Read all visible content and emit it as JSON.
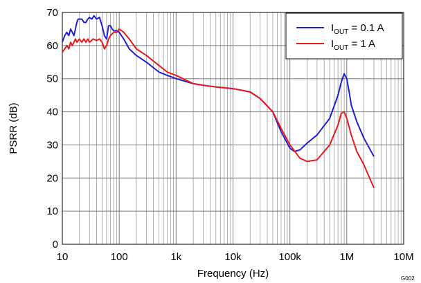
{
  "chart_data": {
    "type": "line",
    "xlabel": "Frequency (Hz)",
    "ylabel": "PSRR (dB)",
    "x_scale": "log",
    "xlim": [
      10,
      10000000
    ],
    "ylim": [
      0,
      70
    ],
    "x_ticks": [
      10,
      100,
      1000,
      10000,
      100000,
      1000000,
      10000000
    ],
    "x_tick_labels": [
      "10",
      "100",
      "1k",
      "10k",
      "100k",
      "1M",
      "10M"
    ],
    "y_ticks": [
      0,
      10,
      20,
      30,
      40,
      50,
      60,
      70
    ],
    "y_tick_labels": [
      "0",
      "10",
      "20",
      "30",
      "40",
      "50",
      "60",
      "70"
    ],
    "grid": true,
    "legend_position": "top-right",
    "figure_code": "G002",
    "series": [
      {
        "name": "IOUT = 0.1 A",
        "legend": {
          "main": "I",
          "sub": "OUT",
          "rest": " = 0.1 A"
        },
        "color": "#1f1fd6",
        "points": [
          [
            10,
            61
          ],
          [
            11,
            63
          ],
          [
            12,
            64
          ],
          [
            13,
            63
          ],
          [
            14,
            65
          ],
          [
            15,
            64
          ],
          [
            16,
            63
          ],
          [
            17,
            65
          ],
          [
            18,
            67
          ],
          [
            19,
            68
          ],
          [
            20,
            68
          ],
          [
            22,
            68
          ],
          [
            24,
            67
          ],
          [
            26,
            67
          ],
          [
            28,
            68
          ],
          [
            30,
            68.5
          ],
          [
            33,
            68
          ],
          [
            36,
            69
          ],
          [
            40,
            68
          ],
          [
            45,
            68.5
          ],
          [
            50,
            66
          ],
          [
            55,
            63
          ],
          [
            60,
            62
          ],
          [
            65,
            66
          ],
          [
            70,
            66
          ],
          [
            75,
            65
          ],
          [
            80,
            64.5
          ],
          [
            90,
            64.5
          ],
          [
            100,
            64
          ],
          [
            120,
            62
          ],
          [
            150,
            59
          ],
          [
            200,
            57
          ],
          [
            300,
            55
          ],
          [
            500,
            52
          ],
          [
            700,
            51
          ],
          [
            1000,
            50
          ],
          [
            2000,
            48.5
          ],
          [
            3000,
            48
          ],
          [
            5000,
            47.5
          ],
          [
            10000,
            47
          ],
          [
            20000,
            46
          ],
          [
            30000,
            44
          ],
          [
            50000,
            40
          ],
          [
            70000,
            34
          ],
          [
            100000,
            29
          ],
          [
            120000,
            28
          ],
          [
            150000,
            28.5
          ],
          [
            200000,
            30.5
          ],
          [
            300000,
            33
          ],
          [
            500000,
            38
          ],
          [
            700000,
            45
          ],
          [
            800000,
            49
          ],
          [
            900000,
            51.5
          ],
          [
            1000000,
            50
          ],
          [
            1100000,
            46
          ],
          [
            1200000,
            42
          ],
          [
            1500000,
            37
          ],
          [
            2000000,
            32
          ],
          [
            3000000,
            26.5
          ]
        ]
      },
      {
        "name": "IOUT = 1 A",
        "legend": {
          "main": "I",
          "sub": "OUT",
          "rest": " = 1 A"
        },
        "color": "#e8191c",
        "points": [
          [
            10,
            58
          ],
          [
            11,
            59
          ],
          [
            12,
            60
          ],
          [
            13,
            59
          ],
          [
            14,
            61
          ],
          [
            15,
            60
          ],
          [
            16,
            61
          ],
          [
            17,
            62
          ],
          [
            18,
            61
          ],
          [
            20,
            62
          ],
          [
            22,
            61
          ],
          [
            24,
            62
          ],
          [
            26,
            61
          ],
          [
            28,
            62
          ],
          [
            30,
            61
          ],
          [
            35,
            62
          ],
          [
            40,
            61.5
          ],
          [
            45,
            62
          ],
          [
            50,
            61
          ],
          [
            55,
            59
          ],
          [
            60,
            60
          ],
          [
            65,
            62
          ],
          [
            70,
            63
          ],
          [
            80,
            64
          ],
          [
            90,
            64
          ],
          [
            100,
            65
          ],
          [
            120,
            64
          ],
          [
            150,
            62
          ],
          [
            200,
            59
          ],
          [
            300,
            57
          ],
          [
            500,
            54
          ],
          [
            700,
            52
          ],
          [
            1000,
            51
          ],
          [
            2000,
            48.5
          ],
          [
            3000,
            48
          ],
          [
            5000,
            47.5
          ],
          [
            10000,
            47
          ],
          [
            20000,
            46
          ],
          [
            30000,
            44
          ],
          [
            50000,
            40
          ],
          [
            70000,
            35
          ],
          [
            100000,
            30
          ],
          [
            150000,
            26
          ],
          [
            200000,
            25
          ],
          [
            300000,
            25.5
          ],
          [
            500000,
            30
          ],
          [
            700000,
            36
          ],
          [
            800000,
            39.5
          ],
          [
            900000,
            40
          ],
          [
            1000000,
            38
          ],
          [
            1200000,
            33
          ],
          [
            1500000,
            28
          ],
          [
            2000000,
            24
          ],
          [
            3000000,
            17
          ]
        ]
      }
    ]
  }
}
